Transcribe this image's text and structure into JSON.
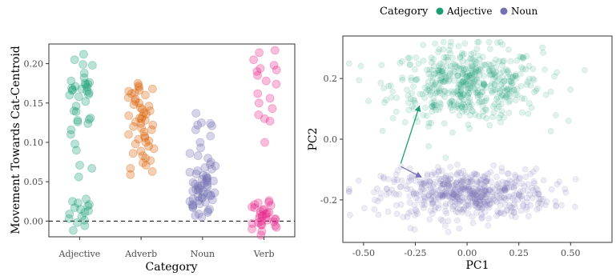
{
  "chart_data": [
    {
      "type": "scatter",
      "subtype": "strip",
      "xlabel": "Category",
      "ylabel": "Movement Towards Cat-Centroid",
      "categories": [
        "Adjective",
        "Adverb",
        "Noun",
        "Verb"
      ],
      "y_ticks": [
        "0.00",
        "0.05",
        "0.10",
        "0.15",
        "0.20"
      ],
      "ylim": [
        -0.02,
        0.225
      ],
      "reference_line": {
        "y": 0,
        "style": "dashed"
      },
      "colors": {
        "Adjective": "#1b9e77",
        "Adverb": "#d95f02",
        "Noun": "#7570b3",
        "Verb": "#e7298a"
      },
      "series": [
        {
          "name": "Adjective",
          "values": [
            0.212,
            0.205,
            0.199,
            0.198,
            0.188,
            0.182,
            0.178,
            0.176,
            0.175,
            0.174,
            0.173,
            0.171,
            0.17,
            0.169,
            0.168,
            0.167,
            0.166,
            0.165,
            0.163,
            0.161,
            0.16,
            0.158,
            0.152,
            0.146,
            0.14,
            0.139,
            0.131,
            0.129,
            0.128,
            0.126,
            0.124,
            0.116,
            0.11,
            0.098,
            0.09,
            0.071,
            0.067,
            0.056,
            0.028,
            0.025,
            0.023,
            0.021,
            0.019,
            0.017,
            0.015,
            0.013,
            0.011,
            0.009,
            0.006,
            0.003,
            0.001,
            -0.002,
            -0.006,
            -0.012
          ]
        },
        {
          "name": "Adverb",
          "values": [
            0.175,
            0.172,
            0.17,
            0.168,
            0.166,
            0.165,
            0.163,
            0.162,
            0.16,
            0.157,
            0.155,
            0.152,
            0.15,
            0.148,
            0.146,
            0.144,
            0.142,
            0.14,
            0.138,
            0.136,
            0.134,
            0.133,
            0.131,
            0.13,
            0.128,
            0.126,
            0.124,
            0.122,
            0.12,
            0.118,
            0.116,
            0.113,
            0.11,
            0.108,
            0.106,
            0.104,
            0.102,
            0.1,
            0.098,
            0.095,
            0.092,
            0.089,
            0.086,
            0.083,
            0.08,
            0.077,
            0.074,
            0.071,
            0.067,
            0.063,
            0.059
          ]
        },
        {
          "name": "Noun",
          "values": [
            0.137,
            0.125,
            0.124,
            0.122,
            0.121,
            0.116,
            0.108,
            0.1,
            0.093,
            0.086,
            0.083,
            0.08,
            0.075,
            0.072,
            0.07,
            0.068,
            0.066,
            0.064,
            0.062,
            0.06,
            0.058,
            0.057,
            0.055,
            0.054,
            0.053,
            0.052,
            0.051,
            0.05,
            0.049,
            0.048,
            0.047,
            0.046,
            0.045,
            0.044,
            0.043,
            0.042,
            0.041,
            0.04,
            0.039,
            0.038,
            0.037,
            0.036,
            0.035,
            0.034,
            0.033,
            0.032,
            0.031,
            0.03,
            0.029,
            0.028,
            0.027,
            0.026,
            0.025,
            0.024,
            0.022,
            0.021,
            0.02,
            0.018,
            0.017,
            0.015,
            0.013,
            0.011,
            0.009,
            0.007,
            0.005
          ]
        },
        {
          "name": "Verb",
          "values": [
            0.217,
            0.214,
            0.205,
            0.198,
            0.194,
            0.192,
            0.19,
            0.185,
            0.178,
            0.174,
            0.162,
            0.156,
            0.15,
            0.143,
            0.135,
            0.13,
            0.127,
            0.1,
            0.026,
            0.024,
            0.023,
            0.021,
            0.02,
            0.018,
            0.017,
            0.015,
            0.014,
            0.012,
            0.011,
            0.01,
            0.009,
            0.008,
            0.007,
            0.006,
            0.005,
            0.004,
            0.003,
            0.002,
            0.001,
            0.0,
            -0.001,
            -0.002,
            -0.003,
            -0.004,
            -0.005,
            -0.006,
            -0.008,
            -0.01,
            -0.013,
            -0.018
          ]
        }
      ]
    },
    {
      "type": "scatter",
      "xlabel": "PC1",
      "ylabel": "PC2",
      "x_ticks": [
        "-0.50",
        "-0.25",
        "0.00",
        "0.25",
        "0.50"
      ],
      "y_ticks": [
        "-0.2",
        "0.0",
        "0.2"
      ],
      "xlim": [
        -0.6,
        0.7
      ],
      "ylim": [
        -0.34,
        0.34
      ],
      "legend": {
        "title": "Category",
        "position": "top",
        "entries": [
          "Adjective",
          "Noun"
        ]
      },
      "colors": {
        "Adjective": "#1b9e77",
        "Noun": "#7570b3"
      },
      "series": [
        {
          "name": "Adjective",
          "center": [
            0.0,
            0.18
          ],
          "spread": [
            0.18,
            0.06
          ],
          "n": 520
        },
        {
          "name": "Noun",
          "center": [
            0.0,
            -0.18
          ],
          "spread": [
            0.2,
            0.04
          ],
          "n": 560
        }
      ],
      "arrows": [
        {
          "series": "Adjective",
          "from": [
            -0.32,
            -0.08
          ],
          "to": [
            -0.23,
            0.11
          ]
        },
        {
          "series": "Noun",
          "from": [
            -0.32,
            -0.09
          ],
          "to": [
            -0.22,
            -0.125
          ]
        }
      ]
    }
  ]
}
